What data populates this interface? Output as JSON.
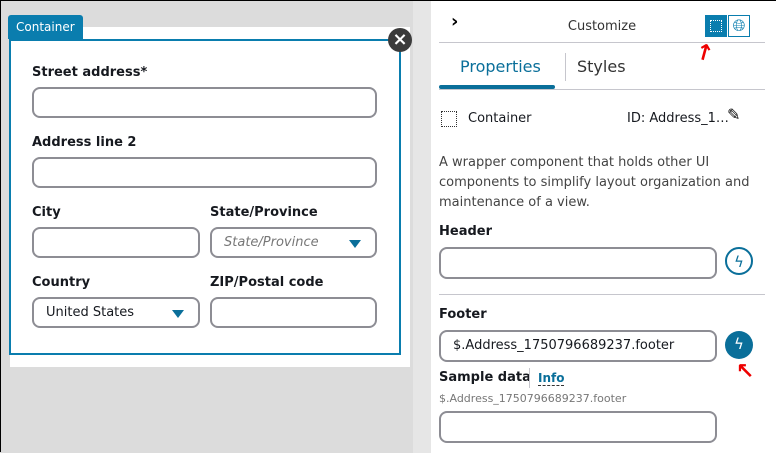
{
  "canvas": {
    "container_tag": "Container",
    "fields": {
      "street_label": "Street address*",
      "street_value": "",
      "line2_label": "Address line 2",
      "line2_value": "",
      "city_label": "City",
      "city_value": "",
      "state_label": "State/Province",
      "state_placeholder": "State/Province",
      "country_label": "Country",
      "country_value": "United States",
      "zip_label": "ZIP/Postal code",
      "zip_value": ""
    }
  },
  "panel": {
    "title": "Customize",
    "tabs": [
      {
        "label": "Properties",
        "active": true
      },
      {
        "label": "Styles",
        "active": false
      }
    ],
    "component_type": "Container",
    "component_id": "ID: Address_1…",
    "description": "A wrapper component that holds other UI components to simplify layout organization and maintenance of a view.",
    "header_label": "Header",
    "header_value": "",
    "footer_label": "Footer",
    "footer_value": "$.Address_1750796689237.footer",
    "sample_label": "Sample data",
    "info_link": "Info",
    "sample_hint": "$.Address_1750796689237.footer",
    "sample_value": ""
  },
  "colors": {
    "accent": "#0a7dae",
    "annotation": "#e00000"
  }
}
